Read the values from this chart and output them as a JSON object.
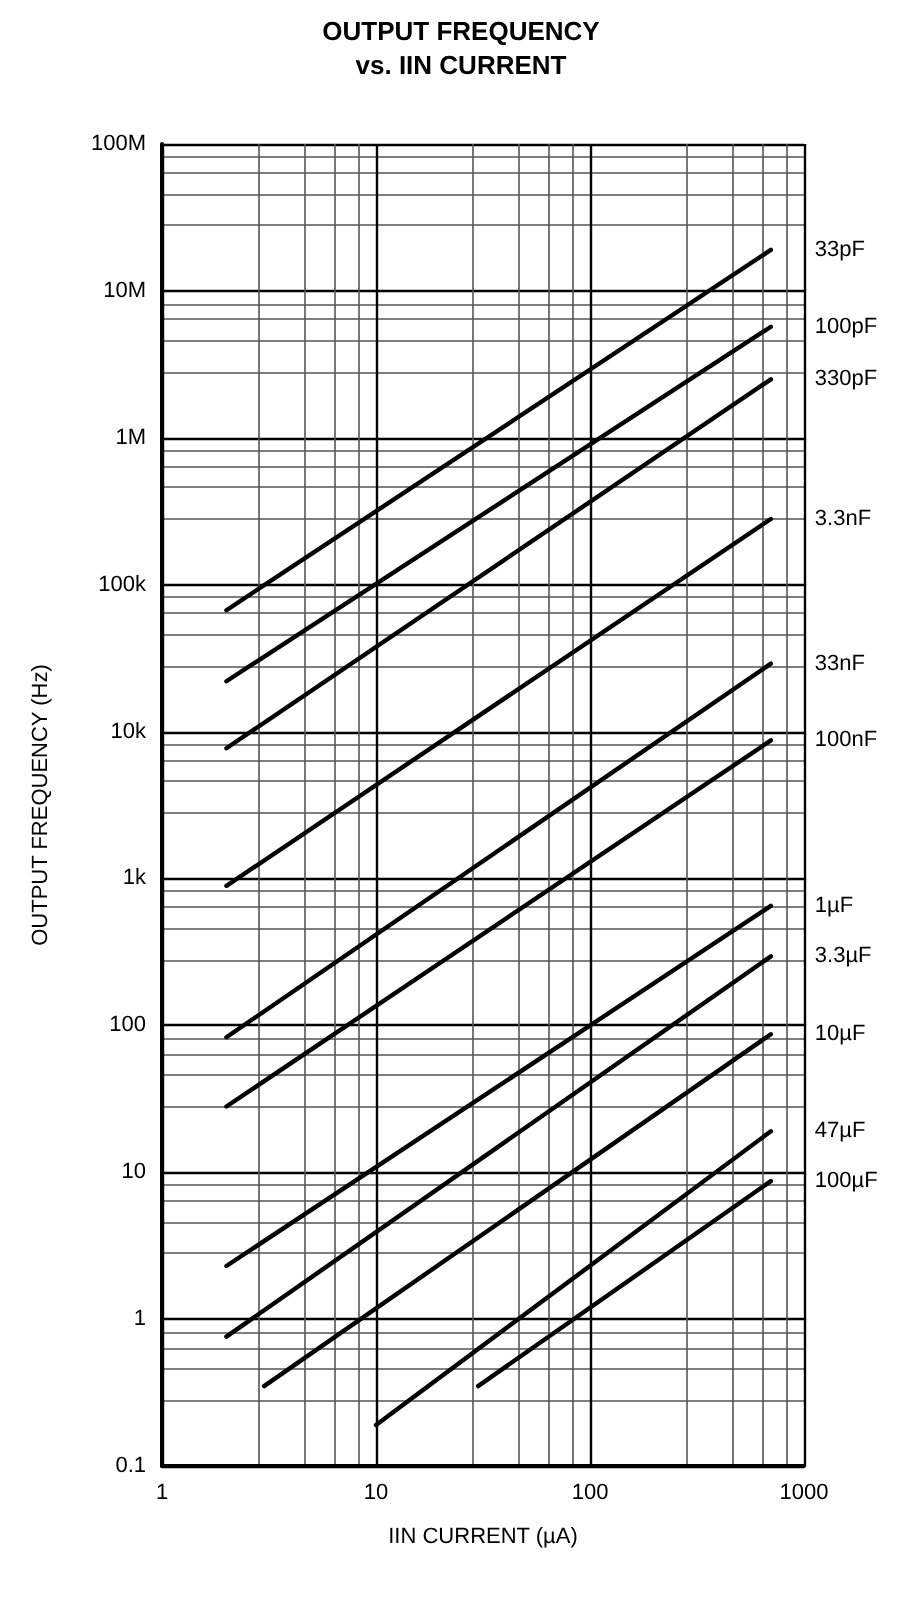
{
  "chart_data": {
    "type": "line",
    "title": "OUTPUT FREQUENCY",
    "subtitle": "vs. IIN CURRENT",
    "xlabel": "IIN CURRENT (µA)",
    "ylabel": "OUTPUT FREQUENCY (Hz)",
    "log": "xy",
    "grid": true,
    "legend": false,
    "marker": "none",
    "line_style": "solid",
    "xlim": [
      1,
      1000
    ],
    "ylim": [
      0.1,
      100000000
    ],
    "xticks": [
      1,
      10,
      100,
      1000
    ],
    "yticks": [
      0.1,
      1,
      10,
      100,
      {
        "value": 1000,
        "label": "1k"
      },
      {
        "value": 10000,
        "label": "10k"
      },
      {
        "value": 100000,
        "label": "100k"
      },
      {
        "value": 1000000,
        "label": "1M"
      },
      {
        "value": 10000000,
        "label": "10M"
      },
      {
        "value": 100000000,
        "label": "100M"
      }
    ],
    "series": [
      {
        "name": "33pF",
        "color": "#000000",
        "x": [
          2,
          700
        ],
        "values": [
          67000,
          19000000
        ]
      },
      {
        "name": "100pF",
        "color": "#000000",
        "x": [
          2,
          700
        ],
        "values": [
          22000,
          5700000
        ]
      },
      {
        "name": "330pF",
        "color": "#000000",
        "x": [
          2,
          700
        ],
        "values": [
          7700,
          2500000
        ]
      },
      {
        "name": "3.3nF",
        "color": "#000000",
        "x": [
          2,
          700
        ],
        "values": [
          890,
          280000
        ]
      },
      {
        "name": "33nF",
        "color": "#000000",
        "x": [
          2,
          700
        ],
        "values": [
          83,
          29000
        ]
      },
      {
        "name": "100nF",
        "color": "#000000",
        "x": [
          2,
          700
        ],
        "values": [
          28,
          8700
        ]
      },
      {
        "name": "1µF",
        "color": "#000000",
        "x": [
          2,
          700
        ],
        "values": [
          2.3,
          650
        ]
      },
      {
        "name": "3.3µF",
        "color": "#000000",
        "x": [
          2,
          700
        ],
        "values": [
          0.76,
          295
        ]
      },
      {
        "name": "10µF",
        "color": "#000000",
        "x": [
          3,
          700
        ],
        "values": [
          0.35,
          87
        ]
      },
      {
        "name": "47µF",
        "color": "#000000",
        "x": [
          10,
          700
        ],
        "values": [
          0.19,
          19
        ]
      },
      {
        "name": "100µF",
        "color": "#000000",
        "x": [
          30,
          700
        ],
        "values": [
          0.35,
          8.7
        ]
      }
    ]
  }
}
